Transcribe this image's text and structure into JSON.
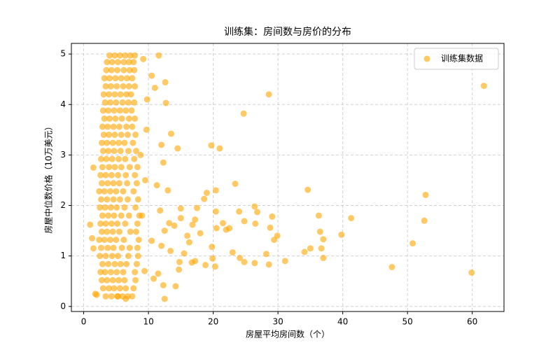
{
  "chart_data": {
    "type": "scatter",
    "title": "训练集：房间数与房价的分布",
    "x_label": "房屋平均房间数（个）",
    "y_label": "房屋中位数价格（10万美元）",
    "xlim": [
      -1.9,
      64.9
    ],
    "ylim": [
      -0.1,
      5.21
    ],
    "xticks": [
      0,
      10,
      20,
      30,
      40,
      50,
      60
    ],
    "yticks": [
      0,
      1,
      2,
      3,
      4,
      5
    ],
    "grid": true,
    "legend": "upper right",
    "series": [
      {
        "name": "训练集数据",
        "color": "#FFA500",
        "x": [
          3.4,
          4.3,
          5.2,
          6.0,
          6.8,
          7.5,
          3.0,
          3.9,
          4.7,
          5.6,
          6.5,
          7.7,
          2.8,
          3.6,
          4.5,
          5.4,
          6.3,
          8.0,
          2.6,
          3.3,
          4.2,
          5.1,
          6.1,
          7.9,
          2.9,
          3.8,
          4.8,
          5.7,
          6.6,
          8.2,
          2.5,
          3.4,
          4.4,
          5.3,
          6.9,
          8.4,
          2.7,
          3.7,
          4.6,
          5.9,
          7.1,
          8.3,
          2.4,
          3.2,
          4.1,
          5.0,
          6.2,
          8.5,
          2.8,
          3.6,
          4.5,
          5.5,
          7.2,
          8.1,
          2.6,
          3.4,
          4.3,
          5.2,
          6.4,
          8.3,
          2.9,
          3.8,
          4.7,
          5.8,
          7.0,
          8.6,
          2.5,
          3.3,
          4.2,
          5.1,
          6.3,
          8.0,
          2.7,
          3.6,
          4.6,
          5.6,
          6.8,
          8.4,
          2.4,
          3.2,
          4.1,
          5.0,
          6.1,
          7.7,
          2.8,
          3.7,
          4.6,
          5.5,
          6.7,
          8.2,
          2.6,
          3.4,
          4.3,
          5.3,
          6.5,
          7.9,
          2.9,
          3.9,
          4.8,
          5.8,
          7.1,
          8.3,
          2.7,
          3.5,
          4.4,
          5.4,
          6.4,
          7.8,
          3.0,
          3.8,
          4.7,
          5.7,
          6.9,
          8.1,
          2.8,
          3.6,
          4.5,
          5.4,
          6.3,
          7.6,
          3.1,
          3.9,
          4.8,
          5.8,
          6.8,
          8.0,
          2.9,
          3.7,
          4.6,
          5.5,
          6.6,
          7.5,
          3.2,
          4.0,
          4.9,
          5.9,
          7.0,
          7.9,
          3.0,
          3.8,
          4.7,
          5.6,
          6.5,
          7.4,
          3.3,
          4.1,
          5.0,
          6.0,
          6.9,
          7.8,
          3.1,
          3.9,
          4.8,
          5.7,
          6.6,
          7.3,
          3.4,
          4.2,
          5.1,
          6.1,
          7.0,
          7.9,
          3.2,
          4.0,
          4.9,
          5.8,
          6.7,
          7.5,
          3.5,
          4.3,
          5.2,
          6.2,
          7.1,
          7.8,
          3.6,
          4.4,
          5.3,
          6.2,
          7.0,
          7.7,
          4.0,
          4.8,
          5.6,
          6.4,
          7.2,
          7.9,
          61.8,
          28.6,
          24.7,
          19.7,
          21,
          23.4,
          34.6,
          52.8,
          41.3,
          52.6,
          36.3,
          39.8,
          50.8,
          36.5,
          37,
          35,
          36.7,
          34.1,
          37,
          47.6,
          59.9,
          31.1,
          28.6,
          28.2,
          26.4,
          24.8,
          24.1,
          23,
          29.4,
          29.9,
          28.8,
          26.5,
          24.8,
          26.8,
          26.4,
          24,
          29.1,
          22,
          20.4,
          20.5,
          19.8,
          19.9,
          20.3,
          18.8,
          17.2,
          16.3,
          16.8,
          17.2,
          19,
          20.4,
          18.6,
          17.5,
          15,
          13,
          12.3,
          13.5,
          14.5,
          12.7,
          11.6,
          12.6,
          10.5,
          11,
          12,
          11.3,
          12.5,
          13.4,
          14.7,
          14.2,
          12.3,
          12.5,
          11.5,
          10.8,
          1.0,
          1.5,
          2.0,
          16,
          15.5,
          18,
          21.5,
          22.5,
          13.2,
          14,
          15,
          11.8,
          12,
          14.8,
          16.7,
          10.5,
          9.5,
          9.7,
          9.8,
          9.2,
          6.5,
          5.3,
          1.8,
          1.5,
          1.3,
          8.8,
          9.0,
          9.4
        ],
        "y": [
          0.2,
          0.2,
          0.2,
          0.2,
          0.2,
          0.2,
          0.36,
          0.36,
          0.36,
          0.36,
          0.36,
          0.36,
          0.52,
          0.52,
          0.52,
          0.52,
          0.52,
          0.52,
          0.68,
          0.68,
          0.68,
          0.68,
          0.68,
          0.68,
          0.84,
          0.84,
          0.84,
          0.84,
          0.84,
          0.84,
          1.0,
          1.0,
          1.0,
          1.0,
          1.0,
          1.0,
          1.16,
          1.16,
          1.16,
          1.16,
          1.16,
          1.16,
          1.32,
          1.32,
          1.32,
          1.32,
          1.32,
          1.32,
          1.48,
          1.48,
          1.48,
          1.48,
          1.48,
          1.48,
          1.64,
          1.64,
          1.64,
          1.64,
          1.64,
          1.64,
          1.8,
          1.8,
          1.8,
          1.8,
          1.8,
          1.8,
          1.96,
          1.96,
          1.96,
          1.96,
          1.96,
          1.96,
          2.12,
          2.12,
          2.12,
          2.12,
          2.12,
          2.12,
          2.28,
          2.28,
          2.28,
          2.28,
          2.28,
          2.28,
          2.44,
          2.44,
          2.44,
          2.44,
          2.44,
          2.44,
          2.6,
          2.6,
          2.6,
          2.6,
          2.6,
          2.6,
          2.76,
          2.76,
          2.76,
          2.76,
          2.76,
          2.76,
          2.92,
          2.92,
          2.92,
          2.92,
          2.92,
          2.92,
          3.08,
          3.08,
          3.08,
          3.08,
          3.08,
          3.08,
          3.24,
          3.24,
          3.24,
          3.24,
          3.24,
          3.24,
          3.4,
          3.4,
          3.4,
          3.4,
          3.4,
          3.4,
          3.56,
          3.56,
          3.56,
          3.56,
          3.56,
          3.56,
          3.72,
          3.72,
          3.72,
          3.72,
          3.72,
          3.72,
          3.88,
          3.88,
          3.88,
          3.88,
          3.88,
          3.88,
          4.04,
          4.04,
          4.04,
          4.04,
          4.04,
          4.04,
          4.2,
          4.2,
          4.2,
          4.2,
          4.2,
          4.2,
          4.36,
          4.36,
          4.36,
          4.36,
          4.36,
          4.36,
          4.52,
          4.52,
          4.52,
          4.52,
          4.52,
          4.52,
          4.68,
          4.68,
          4.68,
          4.68,
          4.68,
          4.68,
          4.84,
          4.84,
          4.84,
          4.84,
          4.84,
          4.84,
          4.97,
          4.97,
          4.97,
          4.97,
          4.97,
          4.97,
          4.37,
          4.2,
          3.82,
          3.19,
          3.13,
          2.43,
          2.31,
          2.21,
          1.75,
          1.7,
          1.8,
          1.42,
          1.25,
          1.48,
          1.33,
          1.15,
          1.15,
          1.08,
          0.96,
          0.78,
          0.67,
          0.9,
          0.83,
          1.04,
          0.86,
          0.88,
          0.96,
          1.07,
          1.32,
          1.4,
          1.56,
          1.64,
          1.69,
          1.87,
          1.98,
          1.88,
          1.78,
          1.52,
          1.88,
          1.55,
          1.18,
          0.95,
          0.79,
          0.82,
          0.9,
          1.27,
          1.62,
          1.72,
          2.25,
          2.3,
          2.13,
          1.95,
          1.94,
          2.3,
          2.85,
          3.42,
          3.13,
          4.03,
          4.97,
          4.44,
          4.57,
          4.33,
          3.2,
          2.4,
          1.5,
          1.1,
          0.73,
          0.4,
          0.42,
          0.15,
          0.65,
          0.55,
          1.62,
          1.15,
          0.23,
          1.4,
          1.05,
          1.45,
          1.65,
          1.55,
          1.65,
          1.6,
          1.75,
          1.9,
          1.2,
          0.88,
          0.87,
          1.3,
          2.5,
          3.5,
          4.1,
          4.9,
          0.15,
          0.2,
          0.25,
          2.75,
          1.35,
          3.0,
          1.8,
          0.7
        ]
      }
    ]
  }
}
